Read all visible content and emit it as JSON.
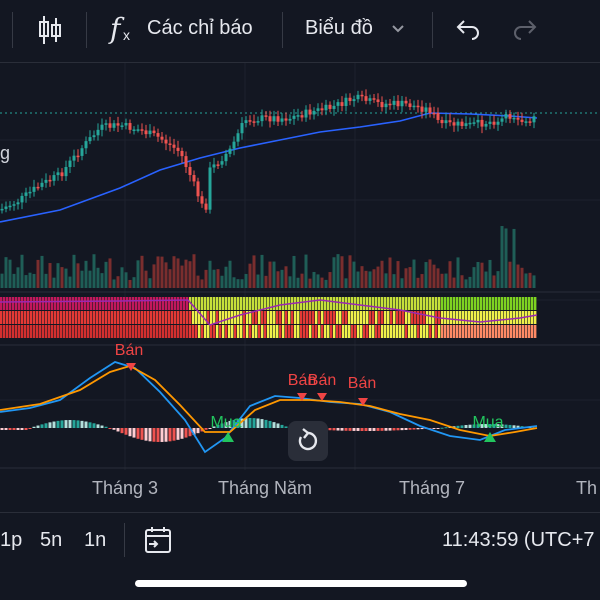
{
  "toolbar": {
    "indicators_label": "Các chỉ báo",
    "chart_type_label": "Biểu đồ",
    "fx_icon_text": "f",
    "fx_sub_text": "x",
    "left_partial_text": "g"
  },
  "time_axis": {
    "labels": [
      "Tháng 3",
      "Tháng Năm",
      "Tháng 7",
      "Th"
    ]
  },
  "signals": {
    "sell": "Bán",
    "buy": "Mua"
  },
  "timeframes": [
    "1p",
    "5n",
    "1n"
  ],
  "clock": "11:43:59 (UTC+7",
  "colors": {
    "background": "#131722",
    "up": "#26a69a",
    "down": "#ef5350",
    "ma": "#2962ff",
    "macd_line": "#2196f3",
    "signal_line": "#ff9800",
    "buy_marker": "#22c55e",
    "sell_marker": "#ef4444"
  },
  "icons": {
    "candles": "candlestick-icon",
    "fx": "fx-icon",
    "chevron": "chevron-down-icon",
    "undo": "undo-icon",
    "redo": "redo-icon",
    "calendar": "calendar-range-icon",
    "reset": "reset-chart-icon"
  }
}
